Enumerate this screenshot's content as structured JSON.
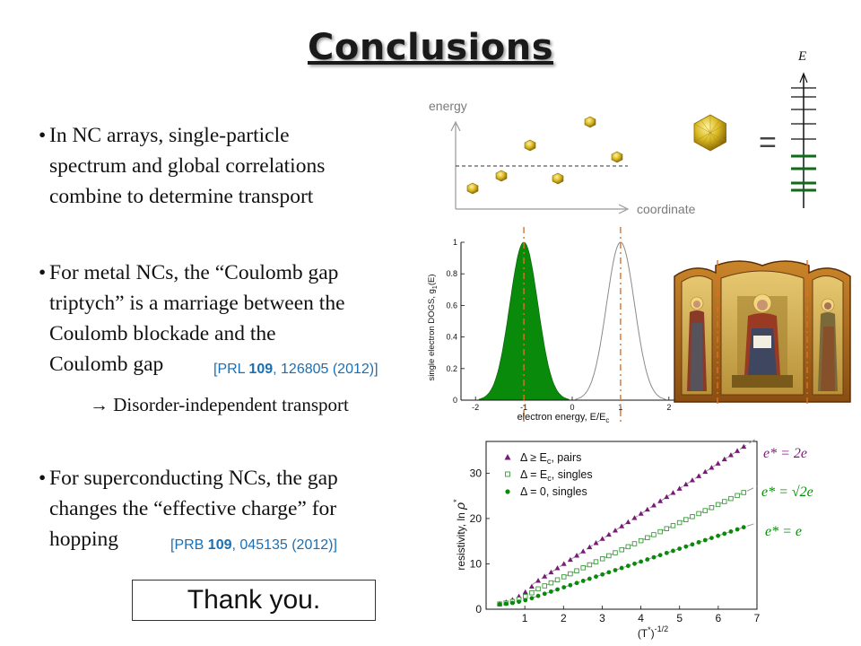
{
  "title": "Conclusions",
  "bullets": [
    {
      "lines": [
        "In NC arrays, single-particle",
        "spectrum and global correlations",
        "combine to determine transport"
      ]
    },
    {
      "lines": [
        "For metal NCs, the “Coulomb gap",
        "triptych” is a marriage between the",
        "Coulomb blockade and the",
        "Coulomb gap"
      ]
    },
    {
      "lines": [
        "For superconducting NCs, the gap",
        "changes the “effective charge” for",
        "hopping"
      ]
    }
  ],
  "refs": {
    "prl": {
      "journal": "[PRL ",
      "volume": "109",
      "rest": ", 126805 (2012)]"
    },
    "prb": {
      "journal": "[PRB ",
      "volume": "109",
      "rest": ", 045135 (2012)]"
    }
  },
  "arrow_text": "Disorder-independent transport",
  "thanks": "Thank you.",
  "schematic": {
    "energy_label": "energy",
    "coordinate_label": "coordinate",
    "E_label": "E",
    "equals": "="
  },
  "colors": {
    "green": "#0a8a0a",
    "purple": "#7a1a78",
    "orange": "#e07020",
    "ref_blue": "#1a6fb3",
    "gold": "#d8b820",
    "level_green": "#0d6b1a"
  },
  "chart_data": [
    {
      "type": "area",
      "xlabel": "electron energy,  E/E",
      "xlabel_sub": "c",
      "ylabel": "single electron DOGS, g",
      "ylabel_sub": "1",
      "ylabel_tail": "(E)",
      "xlim": [
        -2.3,
        2.3
      ],
      "ylim": [
        0,
        1
      ],
      "xticks": [
        -2,
        -1,
        0,
        1,
        2
      ],
      "yticks": [
        0,
        0.2,
        0.4,
        0.6,
        0.8,
        1
      ],
      "ytick_labels": [
        "0",
        "0.2",
        "0.4",
        "0.6",
        "0.8",
        "1"
      ],
      "xtick_labels": [
        "-2",
        "-1",
        "0",
        "1",
        "2"
      ],
      "peak_center": 1,
      "peak_width": 0.42,
      "filled_series_color": "#0a8a0a",
      "dashed_lines_x": [
        -1,
        1
      ]
    },
    {
      "type": "scatter",
      "xlabel": "(T",
      "xlabel_sup": "*",
      "xlabel_tail": ")",
      "xlabel_exp": "-1/2",
      "ylabel": "resistivity, ln ",
      "ylabel_rho": "ρ",
      "ylabel_sup": "*",
      "xlim": [
        0,
        7
      ],
      "ylim": [
        0,
        37
      ],
      "xticks": [
        1,
        2,
        3,
        4,
        5,
        6,
        7
      ],
      "yticks": [
        0,
        10,
        20,
        30
      ],
      "xtick_labels": [
        "1",
        "2",
        "3",
        "4",
        "5",
        "6",
        "7"
      ],
      "ytick_labels": [
        "0",
        "10",
        "20",
        "30"
      ],
      "legend": [
        {
          "pre": "Δ ≥ E",
          "sub": "c",
          "post": ", pairs"
        },
        {
          "pre": "Δ = E",
          "sub": "c",
          "post": ", singles"
        },
        {
          "pre": "Δ = 0, singles",
          "sub": "",
          "post": ""
        }
      ],
      "series": [
        {
          "marker": "triangle",
          "color": "#7a1a78",
          "slope": 5.56,
          "intercept": -1.2,
          "x_start": 0.35,
          "x_end": 6.8
        },
        {
          "marker": "square",
          "color": "#3a9a3a",
          "slope": 4.0,
          "intercept": -0.9,
          "x_start": 0.35,
          "x_end": 6.8
        },
        {
          "marker": "circle",
          "color": "#0a8a0a",
          "slope": 2.85,
          "intercept": -0.9,
          "x_start": 0.35,
          "x_end": 6.8
        }
      ],
      "annotations": [
        {
          "text": "e* = 2e",
          "color": "#7a1a78"
        },
        {
          "text": "e* = √2e",
          "color": "#0a8a0a"
        },
        {
          "text": "e* = e",
          "color": "#0a8a0a"
        }
      ]
    }
  ]
}
